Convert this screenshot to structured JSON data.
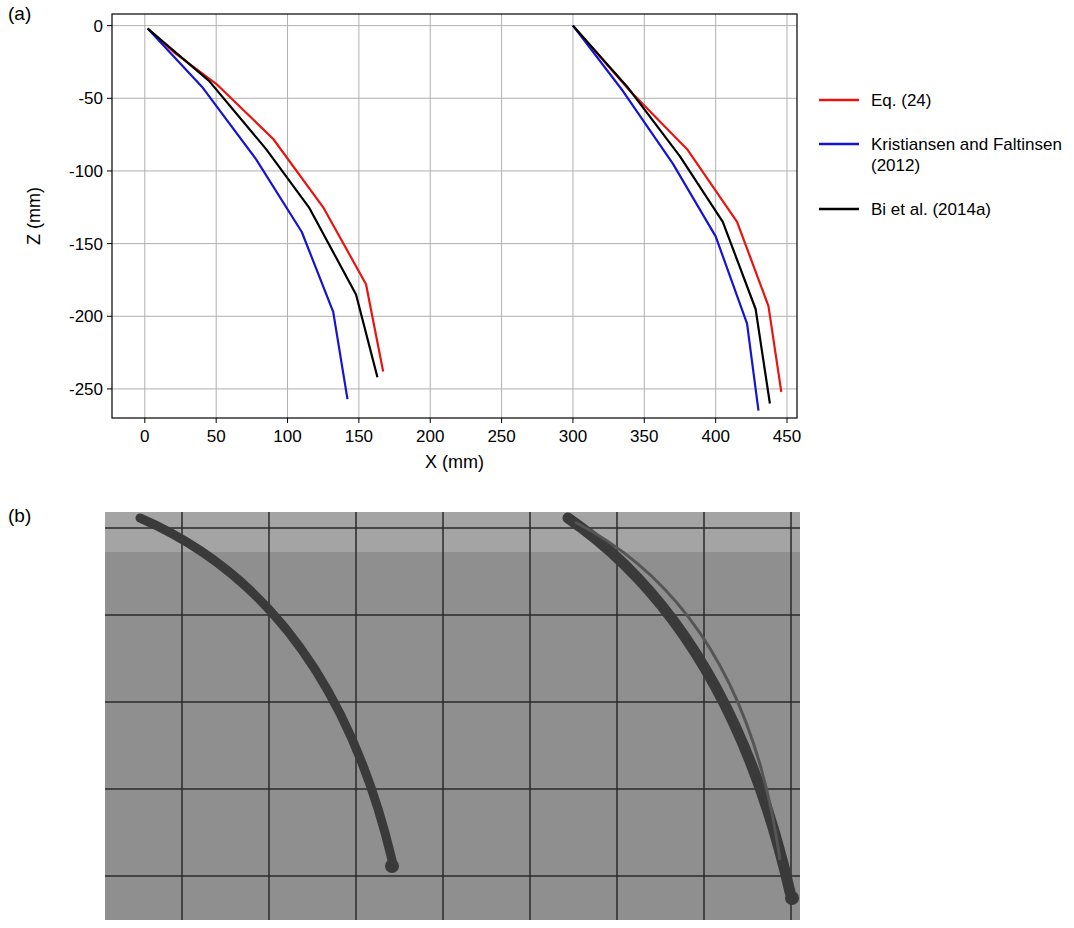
{
  "chart_data": {
    "type": "line",
    "panel_label": "(a)",
    "x_label": "X (mm)",
    "y_label": "Z (mm)",
    "xlim": [
      -23,
      457
    ],
    "ylim": [
      -270,
      8
    ],
    "xticks": [
      0,
      50,
      100,
      150,
      200,
      250,
      300,
      350,
      400,
      450
    ],
    "yticks": [
      -250,
      -200,
      -150,
      -100,
      -50,
      0
    ],
    "grid": true,
    "legend": "outside-right",
    "series": [
      {
        "name": "Eq. (24)",
        "color": "#e8140f",
        "x": [
          2,
          20,
          50,
          90,
          125,
          155,
          167,
          null,
          300,
          340,
          380,
          415,
          437,
          446
        ],
        "values": [
          -2,
          -18,
          -40,
          -78,
          -125,
          -178,
          -238,
          null,
          0,
          -45,
          -85,
          -135,
          -193,
          -252
        ]
      },
      {
        "name": "Kristiansen and Faltinsen (2012)",
        "color": "#1414d2",
        "x": [
          2,
          40,
          78,
          110,
          132,
          142,
          null,
          300,
          335,
          370,
          400,
          422,
          430
        ],
        "values": [
          -2,
          -42,
          -92,
          -142,
          -197,
          -257,
          null,
          0,
          -45,
          -95,
          -145,
          -205,
          -265
        ]
      },
      {
        "name": "Bi et al. (2014a)",
        "color": "#000000",
        "x": [
          2,
          45,
          85,
          115,
          148,
          163,
          null,
          300,
          338,
          375,
          405,
          428,
          438
        ],
        "values": [
          -2,
          -38,
          -85,
          -125,
          -185,
          -242,
          null,
          0,
          -42,
          -90,
          -135,
          -195,
          -260
        ]
      }
    ]
  },
  "photo": {
    "panel_label": "(b)"
  }
}
